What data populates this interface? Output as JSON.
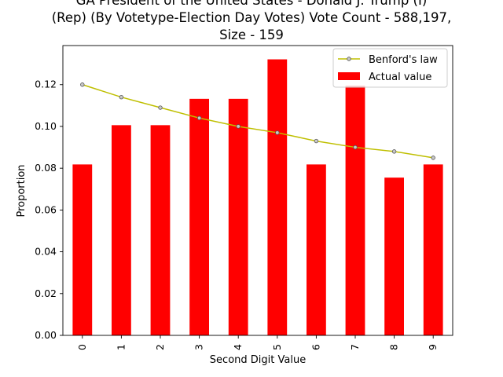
{
  "title_lines": [
    "GA President of the United States - Donald J. Trump (I)",
    "(Rep) (By Votetype-Election Day Votes) Vote Count - 588,197,",
    "Size - 159"
  ],
  "chart_data": {
    "type": "bar",
    "title": "GA President of the United States - Donald J. Trump (I) (Rep) (By Votetype-Election Day Votes) Vote Count - 588,197, Size - 159",
    "xlabel": "Second Digit Value",
    "ylabel": "Proportion",
    "categories": [
      "0",
      "1",
      "2",
      "3",
      "4",
      "5",
      "6",
      "7",
      "8",
      "9"
    ],
    "series": [
      {
        "name": "Actual value",
        "type": "bar",
        "color": "#ff0000",
        "values": [
          0.0818,
          0.1006,
          0.1006,
          0.1132,
          0.1132,
          0.1321,
          0.0818,
          0.1195,
          0.0755,
          0.0818
        ]
      },
      {
        "name": "Benford's law",
        "type": "line",
        "color": "#bfbf00",
        "values": [
          0.12,
          0.114,
          0.109,
          0.104,
          0.1,
          0.097,
          0.093,
          0.09,
          0.088,
          0.085
        ]
      }
    ],
    "ylim": [
      0,
      0.1387
    ],
    "yticks": [
      "0.00",
      "0.02",
      "0.04",
      "0.06",
      "0.08",
      "0.10",
      "0.12"
    ],
    "ytick_values": [
      0,
      0.02,
      0.04,
      0.06,
      0.08,
      0.1,
      0.12
    ],
    "grid": false,
    "legend_position": "top-right"
  }
}
